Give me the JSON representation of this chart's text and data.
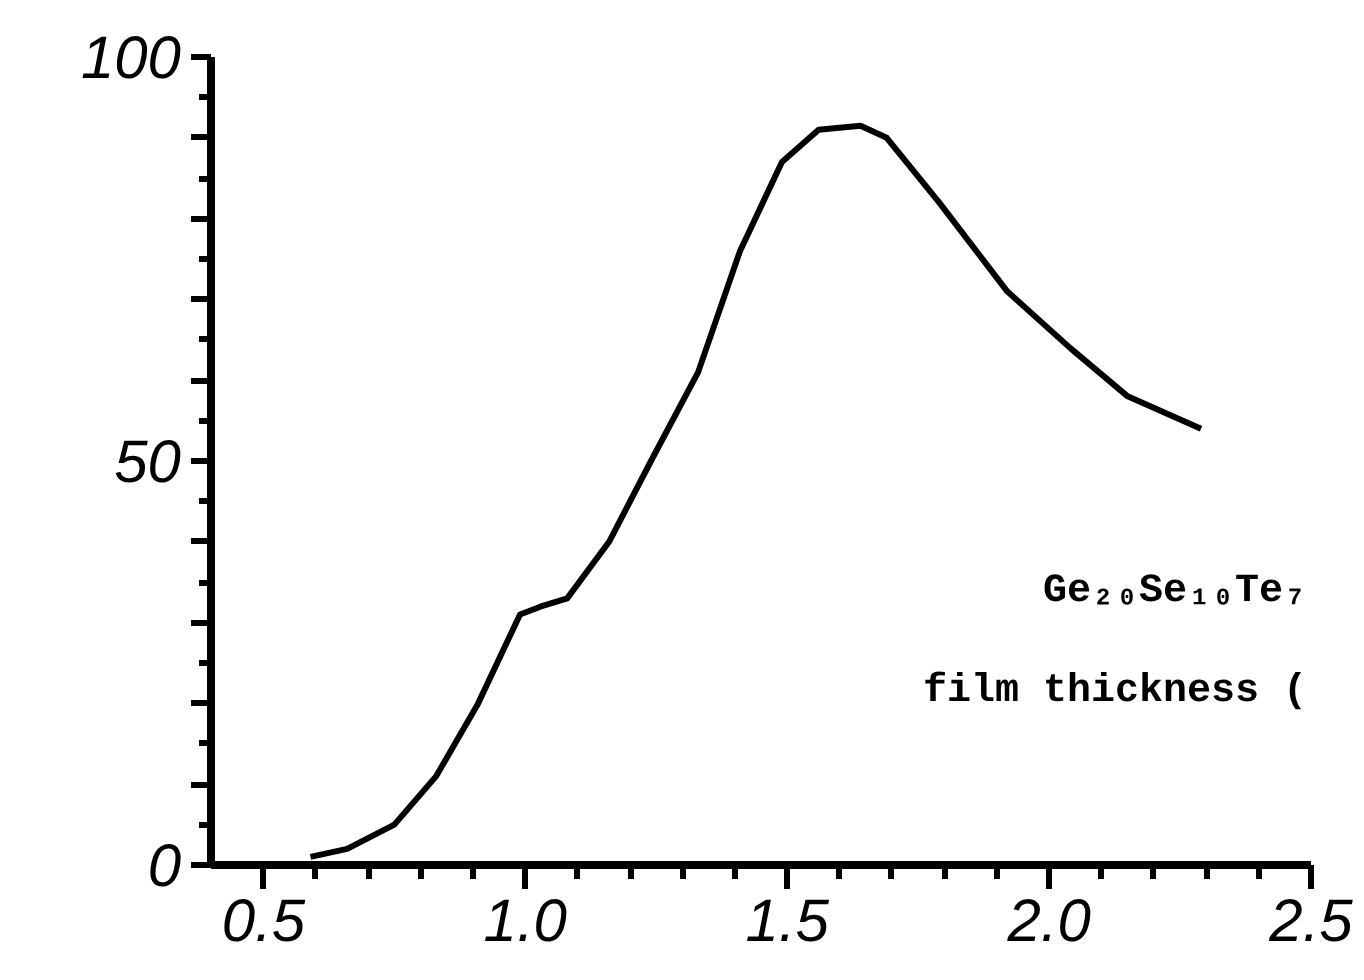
{
  "chart_data": {
    "type": "line",
    "color": "#000000",
    "line_style": "solid",
    "marker": "none",
    "grid": false,
    "x": [
      0.59,
      0.66,
      0.75,
      0.83,
      0.91,
      0.99,
      1.03,
      1.08,
      1.16,
      1.24,
      1.33,
      1.41,
      1.49,
      1.56,
      1.64,
      1.69,
      1.79,
      1.92,
      2.04,
      2.15,
      2.29
    ],
    "values": [
      1,
      2,
      5,
      11,
      20,
      31,
      32,
      33,
      40,
      50,
      61,
      76,
      87,
      91,
      91.5,
      90,
      82,
      71,
      64,
      58,
      54
    ],
    "xlim": [
      0.4,
      2.5
    ],
    "ylim": [
      0,
      100
    ],
    "xticks": [
      {
        "value": 0.5,
        "label": "0.5"
      },
      {
        "value": 1.0,
        "label": "1.0"
      },
      {
        "value": 1.5,
        "label": "1.5"
      },
      {
        "value": 2.0,
        "label": "2.0"
      },
      {
        "value": 2.5,
        "label": "2.5"
      }
    ],
    "yticks": [
      0,
      {
        "value": 10,
        "label": null
      },
      {
        "value": 20,
        "label": null
      },
      {
        "value": 30,
        "label": null
      },
      {
        "value": 40,
        "label": null
      },
      50,
      {
        "value": 60,
        "label": null
      },
      {
        "value": 70,
        "label": null
      },
      {
        "value": 80,
        "label": null
      },
      {
        "value": 90,
        "label": null
      },
      100
    ],
    "annotations": [
      "Ge₂₀Se₁₀Te₇",
      "film thickness ("
    ]
  }
}
